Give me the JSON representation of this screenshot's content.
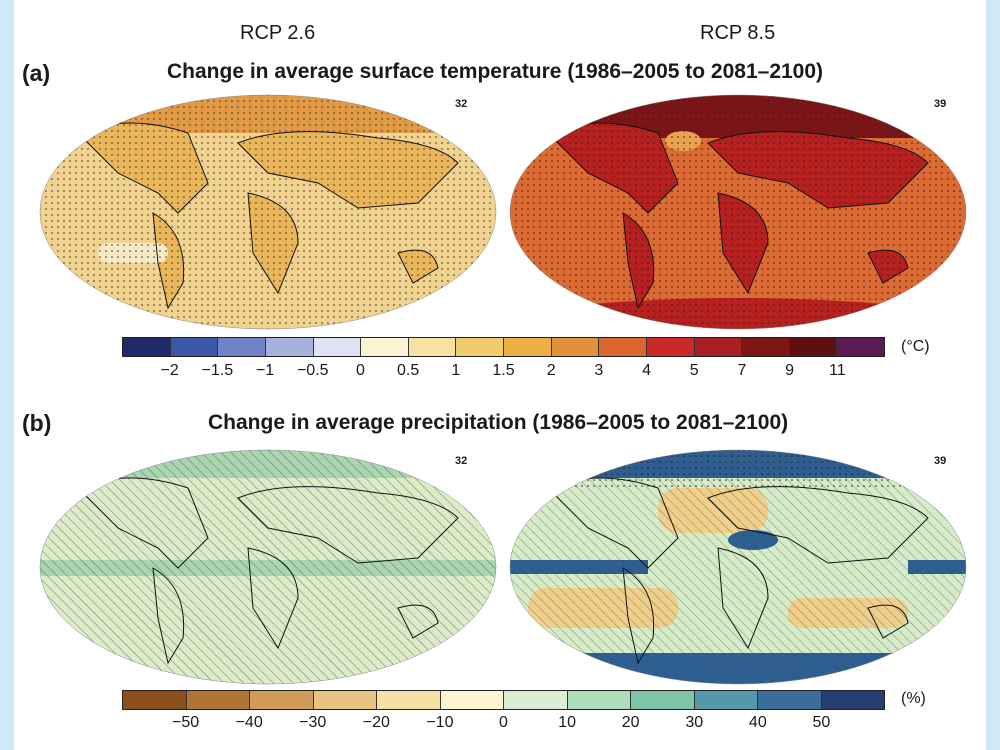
{
  "scenarios": {
    "left": "RCP 2.6",
    "right": "RCP 8.5"
  },
  "panel_a": {
    "letter": "(a)",
    "title": "Change in average surface temperature (1986–2005 to 2081–2100)",
    "model_count_left": "32",
    "model_count_right": "39",
    "unit": "(°C)",
    "colorbar": {
      "tick_labels": [
        "−2",
        "−1.5",
        "−1",
        "−0.5",
        "0",
        "0.5",
        "1",
        "1.5",
        "2",
        "3",
        "4",
        "5",
        "7",
        "9",
        "11"
      ],
      "colors": [
        "#202a6b",
        "#3a57a8",
        "#6f83c6",
        "#a6b2dd",
        "#dde3f5",
        "#fbf3d2",
        "#f7e2a4",
        "#f1cc6e",
        "#ebb043",
        "#e2903a",
        "#d9652f",
        "#c92a28",
        "#a81f22",
        "#7e1616",
        "#5d0f12",
        "#5a1a52"
      ]
    }
  },
  "panel_b": {
    "letter": "(b)",
    "title": "Change in average precipitation (1986–2005 to 2081–2100)",
    "model_count_left": "32",
    "model_count_right": "39",
    "unit": "(%)",
    "colorbar": {
      "tick_labels": [
        "−50",
        "−40",
        "−30",
        "−20",
        "−10",
        "0",
        "10",
        "20",
        "30",
        "40",
        "50"
      ],
      "colors": [
        "#8c4e1a",
        "#b07336",
        "#cf9a5a",
        "#e8c382",
        "#f5e0a8",
        "#fdf4d2",
        "#dbeed3",
        "#aedbb9",
        "#7fc3a9",
        "#5499ab",
        "#3b6d9a",
        "#253f73"
      ]
    }
  },
  "map_colors": {
    "temp_rcp26_base": "#f1d28e",
    "temp_rcp26_land": "#ebb65a",
    "temp_rcp26_arctic": "#e29a45",
    "temp_rcp26_cool": "#f8eac5",
    "temp_rcp85_base": "#dd6a33",
    "temp_rcp85_land": "#b8201f",
    "temp_rcp85_arctic": "#7d1518",
    "temp_rcp85_cool": "#e9a24e",
    "precip_rcp26_base": "#dcecc8",
    "precip_rcp26_band": "#a9d6b0",
    "precip_rcp85_base": "#d6ebc7",
    "precip_rcp85_wet": "#2e5f92",
    "precip_rcp85_dry": "#f0cf8a"
  }
}
